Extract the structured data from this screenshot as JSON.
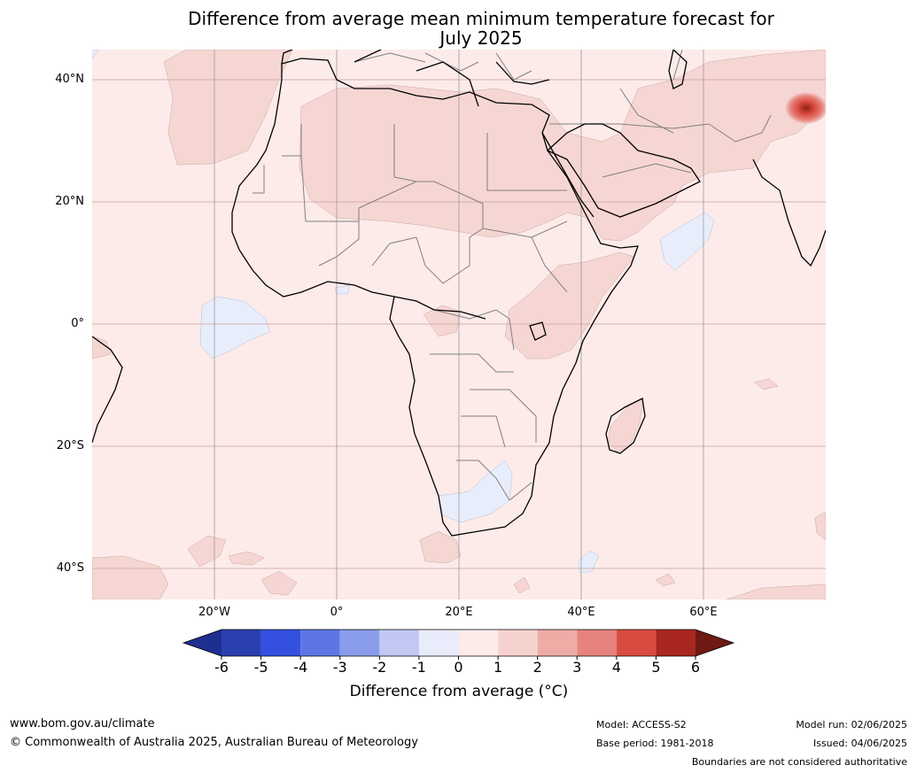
{
  "title_line1": "Difference from average mean minimum temperature forecast for",
  "title_line2": "July 2025",
  "lat_labels": [
    "40°N",
    "20°N",
    "0°",
    "20°S",
    "40°S"
  ],
  "lon_labels": [
    "20°W",
    "0°",
    "20°E",
    "40°E",
    "60°E"
  ],
  "colorbar": {
    "label": "Difference from average (°C)",
    "ticks": [
      "-6",
      "-5",
      "-4",
      "-3",
      "-2",
      "-1",
      "0",
      "1",
      "2",
      "3",
      "4",
      "5",
      "6"
    ],
    "colors": [
      "#1f2f8f",
      "#2a3fb0",
      "#3350e0",
      "#5c76e5",
      "#8a9deb",
      "#c0c8f3",
      "#e9ecfb",
      "#fcebe9",
      "#f6d2cf",
      "#eeaca7",
      "#e6837d",
      "#d94b40",
      "#a8281f",
      "#6e1a12"
    ]
  },
  "map_colors": {
    "background": "#fcebe9",
    "warm_1_2": "#f6d6d3",
    "cool_minus1_0": "#e8edfb",
    "hotspot": "#d94b40",
    "coast": "#000000",
    "border": "#808080",
    "grid": "#c8a0a0"
  },
  "footer": {
    "website": "www.bom.gov.au/climate",
    "copyright": "© Commonwealth of Australia 2025, Australian Bureau of Meteorology",
    "model": "Model: ACCESS-S2",
    "base_period": "Base period: 1981-2018",
    "model_run": "Model run: 02/06/2025",
    "issued": "Issued: 04/06/2025",
    "disclaimer": "Boundaries are not considered authoritative"
  }
}
